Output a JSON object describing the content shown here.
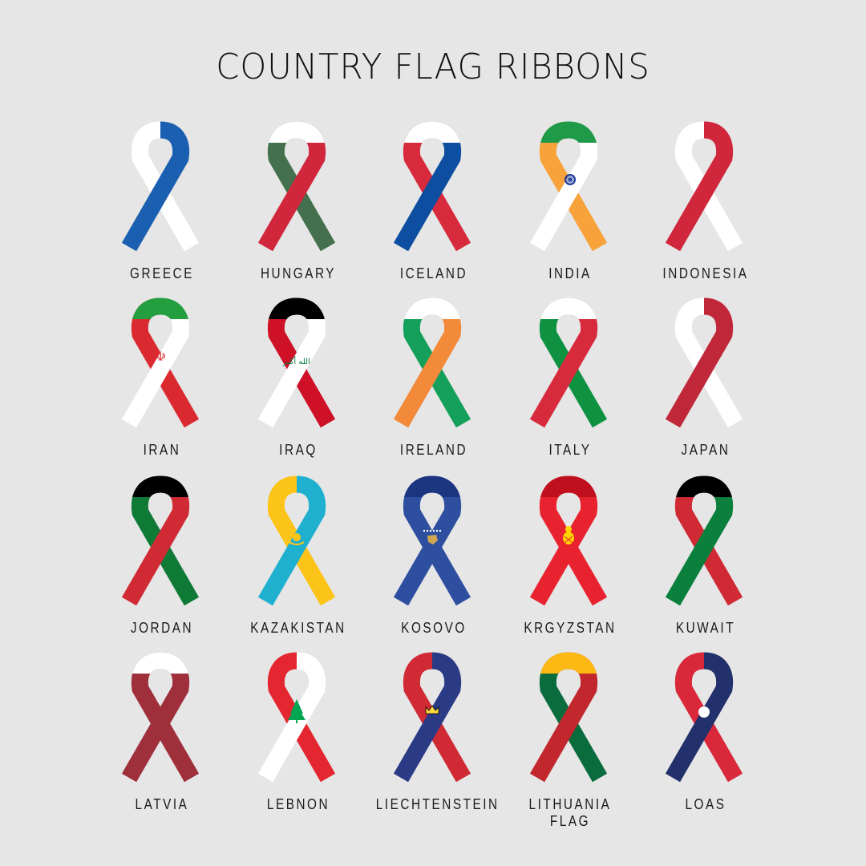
{
  "title": "COUNTRY FLAG RIBBONS",
  "ribbons": [
    {
      "label": "GREECE",
      "back": "#ffffff",
      "front": "#1b5fb0",
      "cap": null,
      "emblem": null
    },
    {
      "label": "HUNGARY",
      "back": "#44704d",
      "front": "#d0273d",
      "cap": "#ffffff",
      "emblem": null
    },
    {
      "label": "ICELAND",
      "back": "#d72a3c",
      "front": "#0d4ea1",
      "cap": "#ffffff",
      "emblem": null
    },
    {
      "label": "INDIA",
      "back": "#f7a23a",
      "front": "#ffffff",
      "cap": "#1f9a48",
      "emblem": "chakra-icon"
    },
    {
      "label": "INDONESIA",
      "back": "#ffffff",
      "front": "#d0273d",
      "cap": null,
      "emblem": null
    },
    {
      "label": "IRAN",
      "back": "#da2a2f",
      "front": "#ffffff",
      "cap": "#239f40",
      "emblem": "iran-emblem-icon"
    },
    {
      "label": "IRAQ",
      "back": "#ce1126",
      "front": "#ffffff",
      "cap": "#000000",
      "emblem": "iraq-takbir-icon",
      "emblem_text": "الله أكبر"
    },
    {
      "label": "IRELAND",
      "back": "#14a05a",
      "front": "#f28a3a",
      "cap": "#ffffff",
      "emblem": null
    },
    {
      "label": "ITALY",
      "back": "#0e9141",
      "front": "#d72a3c",
      "cap": "#ffffff",
      "emblem": null
    },
    {
      "label": "JAPAN",
      "back": "#ffffff",
      "front": "#c0283a",
      "cap": null,
      "emblem": null
    },
    {
      "label": "JORDAN",
      "back": "#0f7a36",
      "front": "#d02a35",
      "cap": "#000000",
      "emblem": null
    },
    {
      "label": "KAZAKISTAN",
      "back": "#fcc419",
      "front": "#1fb0d0",
      "cap": null,
      "emblem": "sun-eagle-icon"
    },
    {
      "label": "KOSOVO",
      "back": "#2e4fa0",
      "front": "#2e4fa0",
      "cap": "#1b3580",
      "emblem": "kosovo-map-icon"
    },
    {
      "label": "KRGYZSTAN",
      "back": "#e8232f",
      "front": "#e8232f",
      "cap": "#c0101e",
      "emblem": "tunduk-sun-icon"
    },
    {
      "label": "KUWAIT",
      "back": "#d02a35",
      "front": "#0b7f3c",
      "cap": "#000000",
      "emblem": null
    },
    {
      "label": "LATVIA",
      "back": "#9e2f3b",
      "front": "#9e2f3b",
      "cap": "#ffffff",
      "emblem": null
    },
    {
      "label": "LEBNON",
      "back": "#e3262f",
      "front": "#ffffff",
      "cap": null,
      "emblem": "cedar-icon"
    },
    {
      "label": "LIECHTENSTEIN",
      "back": "#d02a35",
      "front": "#2b3a85",
      "cap": null,
      "emblem": "crown-icon"
    },
    {
      "label": "LITHUANIA FLAG",
      "back": "#0a6b3c",
      "front": "#c1272d",
      "cap": "#fdb913",
      "emblem": null
    },
    {
      "label": "LOAS",
      "back": "#d8283a",
      "front": "#22306b",
      "cap": null,
      "emblem": "white-circle-icon"
    }
  ]
}
